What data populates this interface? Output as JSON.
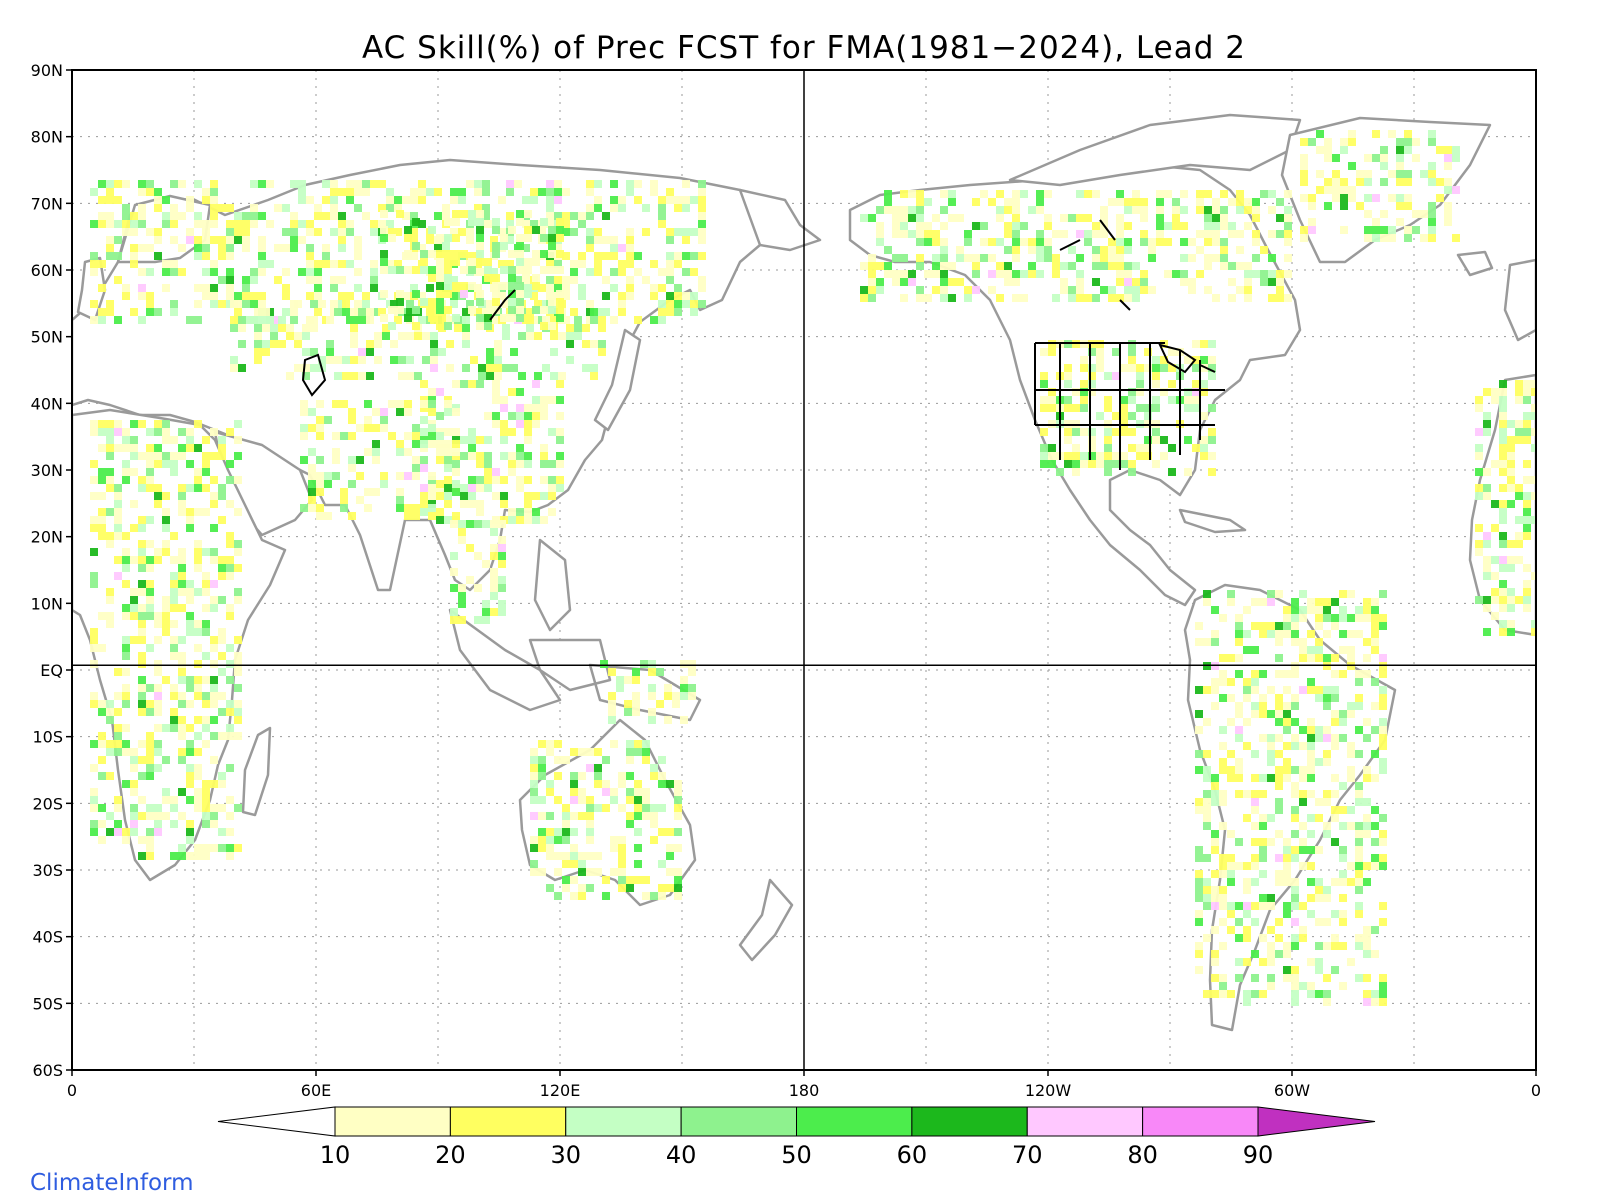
{
  "title": "AC Skill(%) of Prec FCST for FMA(1981−2024), Lead 2",
  "brand": "ClimateInform",
  "map": {
    "lon_range": [
      0,
      360
    ],
    "lat_range": [
      -60,
      90
    ],
    "lat_ticks": [
      {
        "value": 90,
        "label": "90N"
      },
      {
        "value": 80,
        "label": "80N"
      },
      {
        "value": 70,
        "label": "70N"
      },
      {
        "value": 60,
        "label": "60N"
      },
      {
        "value": 50,
        "label": "50N"
      },
      {
        "value": 40,
        "label": "40N"
      },
      {
        "value": 30,
        "label": "30N"
      },
      {
        "value": 20,
        "label": "20N"
      },
      {
        "value": 10,
        "label": "10N"
      },
      {
        "value": 0,
        "label": "EQ"
      },
      {
        "value": -10,
        "label": "10S"
      },
      {
        "value": -20,
        "label": "20S"
      },
      {
        "value": -30,
        "label": "30S"
      },
      {
        "value": -40,
        "label": "40S"
      },
      {
        "value": -50,
        "label": "50S"
      },
      {
        "value": -60,
        "label": "60S"
      }
    ],
    "lon_ticks": [
      {
        "value": 0,
        "label": "0"
      },
      {
        "value": 60,
        "label": "60E"
      },
      {
        "value": 120,
        "label": "120E"
      },
      {
        "value": 180,
        "label": "180"
      },
      {
        "value": 240,
        "label": "120W"
      },
      {
        "value": 300,
        "label": "60W"
      },
      {
        "value": 360,
        "label": "0"
      }
    ],
    "reference_lines": {
      "equator_lat": 0,
      "dateline_lon": 180
    },
    "colors": {
      "coastline": "#9a9a9a",
      "lakes_and_borders": "#000000",
      "grid": "#9a9a9a"
    }
  },
  "colorbar": {
    "levels": [
      "10",
      "20",
      "30",
      "40",
      "50",
      "60",
      "70",
      "80",
      "90"
    ],
    "colors": [
      "#ffffff",
      "#ffffc4",
      "#ffff60",
      "#c4ffc4",
      "#8ef28e",
      "#4ced4c",
      "#1cb81c",
      "#ffc8ff",
      "#f888f8",
      "#c030c0"
    ]
  }
}
